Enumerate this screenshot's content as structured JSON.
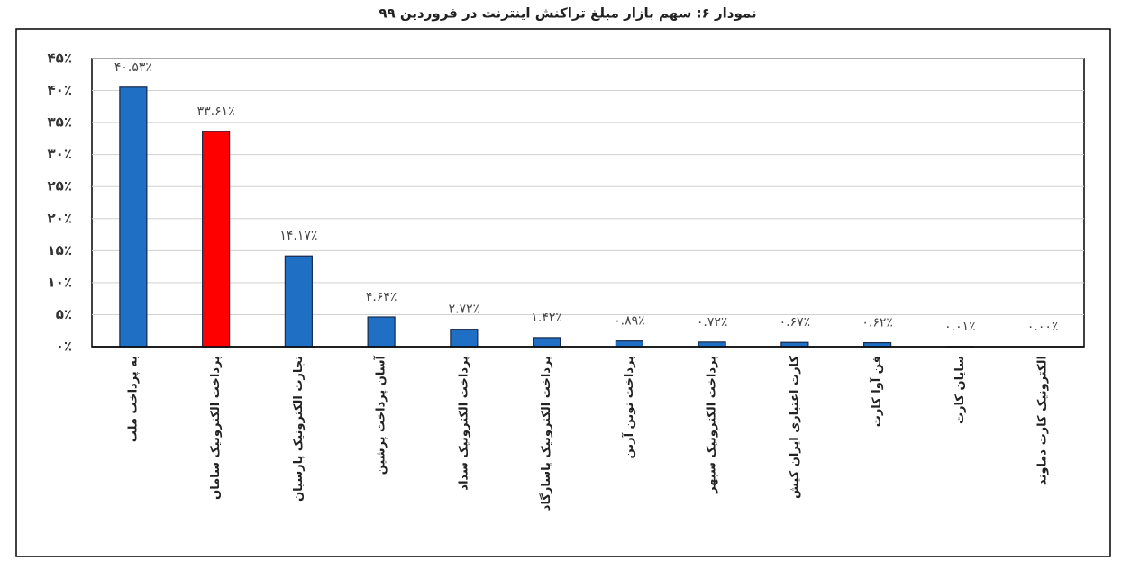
{
  "chart_data": {
    "type": "bar",
    "title": "نمودار ۶: سهم بازار مبلغ تراکنش اینترنت در فروردین ۹۹",
    "categories": [
      "به پرداخت ملت",
      "پرداخت الکترونیک سامان",
      "تجارت الکترونیک پارسیان",
      "آسان پرداخت پرشین",
      "پرداخت الکترونیک سداد",
      "پرداخت الکترونیک پاسارگاد",
      "پرداخت نوین آرین",
      "پرداخت الکترونیک سپهر",
      "کارت اعتباری ایران کیش",
      "فن آوا کارت",
      "سایان کارت",
      "الکترونیک کارت دماوند"
    ],
    "values": [
      40.53,
      33.61,
      14.17,
      4.64,
      2.72,
      1.42,
      0.89,
      0.72,
      0.67,
      0.62,
      0.01,
      0.0
    ],
    "value_labels": [
      "۴۰.۵۳٪",
      "۳۳.۶۱٪",
      "۱۴.۱۷٪",
      "۴.۶۴٪",
      "۲.۷۲٪",
      "۱.۴۲٪",
      "۰.۸۹٪",
      "۰.۷۲٪",
      "۰.۶۷٪",
      "۰.۶۲٪",
      "۰.۰۱٪",
      "۰.۰۰٪"
    ],
    "colors": [
      "#1f6fc5",
      "#ff0000",
      "#1f6fc5",
      "#1f6fc5",
      "#1f6fc5",
      "#1f6fc5",
      "#1f6fc5",
      "#1f6fc5",
      "#1f6fc5",
      "#1f6fc5",
      "#1f6fc5",
      "#1f6fc5"
    ],
    "ylim": [
      0,
      45
    ],
    "yticks": [
      {
        "value": 0,
        "label": "۰٪"
      },
      {
        "value": 5,
        "label": "۵٪"
      },
      {
        "value": 10,
        "label": "۱۰٪"
      },
      {
        "value": 15,
        "label": "۱۵٪"
      },
      {
        "value": 20,
        "label": "۲۰٪"
      },
      {
        "value": 25,
        "label": "۲۵٪"
      },
      {
        "value": 30,
        "label": "۳۰٪"
      },
      {
        "value": 35,
        "label": "۳۵٪"
      },
      {
        "value": 40,
        "label": "۴۰٪"
      },
      {
        "value": 45,
        "label": "۴۵٪"
      }
    ],
    "grid": true
  }
}
